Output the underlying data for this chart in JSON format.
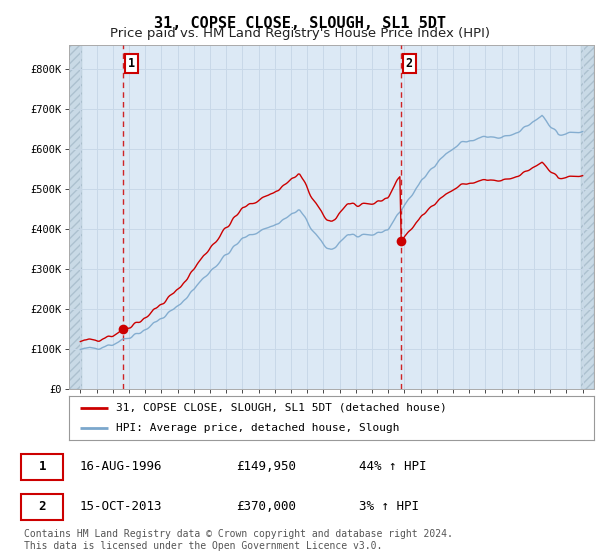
{
  "title": "31, COPSE CLOSE, SLOUGH, SL1 5DT",
  "subtitle": "Price paid vs. HM Land Registry's House Price Index (HPI)",
  "ylabel_vals": [
    0,
    100000,
    200000,
    300000,
    400000,
    500000,
    600000,
    700000,
    800000
  ],
  "ylabel_strs": [
    "£0",
    "£100K",
    "£200K",
    "£300K",
    "£400K",
    "£500K",
    "£600K",
    "£700K",
    "£800K"
  ],
  "ylim": [
    0,
    860000
  ],
  "xlim_start": 1993.3,
  "xlim_end": 2025.7,
  "fig_bg": "#ffffff",
  "plot_bg": "#dce9f5",
  "plot_bg2": "#e8f0f8",
  "grid_color": "#c8d8e8",
  "sale1_x": 1996.62,
  "sale1_y": 149950,
  "sale2_x": 2013.79,
  "sale2_y": 370000,
  "sale1_label": "1",
  "sale2_label": "2",
  "legend_line1": "31, COPSE CLOSE, SLOUGH, SL1 5DT (detached house)",
  "legend_line2": "HPI: Average price, detached house, Slough",
  "ann1_num": "1",
  "ann1_date": "16-AUG-1996",
  "ann1_price": "£149,950",
  "ann1_hpi": "44% ↑ HPI",
  "ann2_num": "2",
  "ann2_date": "15-OCT-2013",
  "ann2_price": "£370,000",
  "ann2_hpi": "3% ↑ HPI",
  "footer": "Contains HM Land Registry data © Crown copyright and database right 2024.\nThis data is licensed under the Open Government Licence v3.0.",
  "red_line_color": "#cc0000",
  "blue_line_color": "#7ba7cc",
  "title_fontsize": 11,
  "subtitle_fontsize": 9.5,
  "tick_fontsize": 7.5
}
